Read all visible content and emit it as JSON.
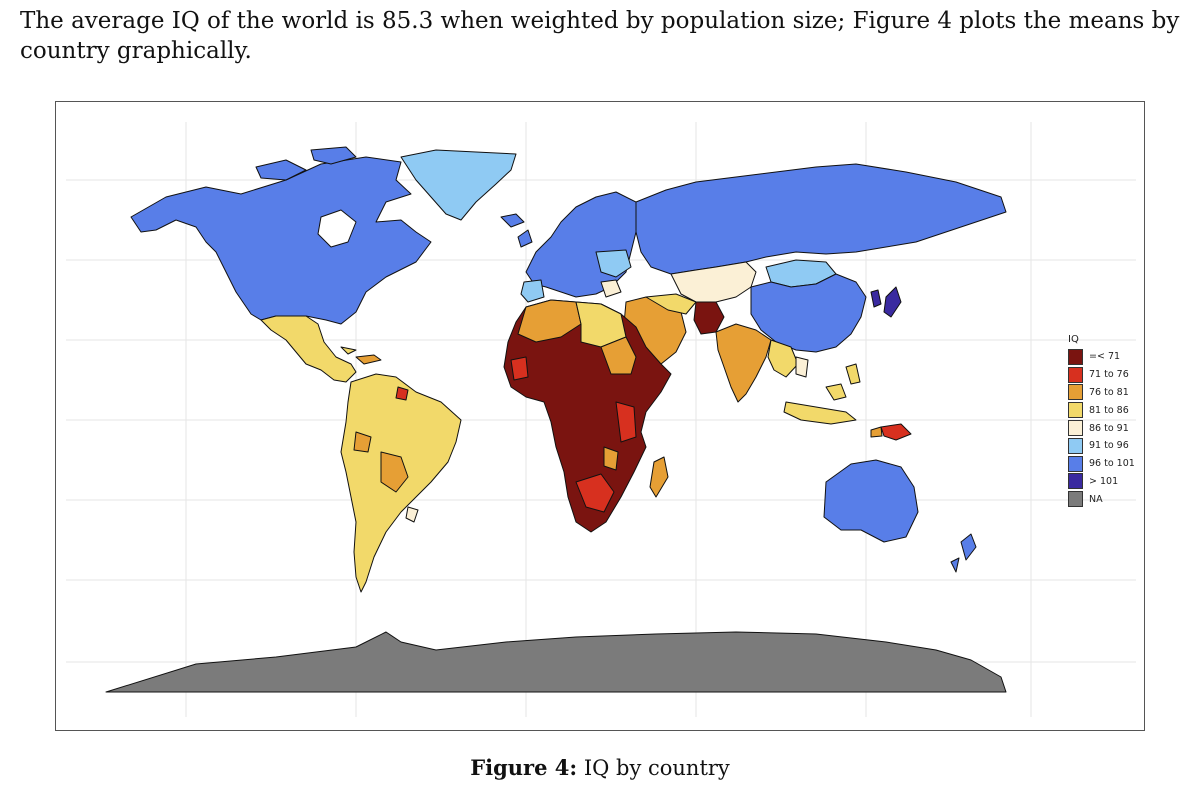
{
  "text": {
    "paragraph": "The average IQ of the world is 85.3 when weighted by population size; Figure 4 plots the means by country graphically."
  },
  "legend": {
    "title": "IQ",
    "items": [
      {
        "label": "=< 71",
        "color": "#7a1410"
      },
      {
        "label": "71 to 76",
        "color": "#d7301f"
      },
      {
        "label": "76 to 81",
        "color": "#e69f35"
      },
      {
        "label": "81 to 86",
        "color": "#f2d96a"
      },
      {
        "label": "86 to 91",
        "color": "#fbf0d6"
      },
      {
        "label": "91 to 96",
        "color": "#8fcaf3"
      },
      {
        "label": "96 to 101",
        "color": "#587ee8"
      },
      {
        "label": "> 101",
        "color": "#3a2aa0"
      },
      {
        "label": "NA",
        "color": "#7b7b7b"
      }
    ]
  },
  "caption": {
    "label": "Figure 4:",
    "text": "IQ by country"
  }
}
